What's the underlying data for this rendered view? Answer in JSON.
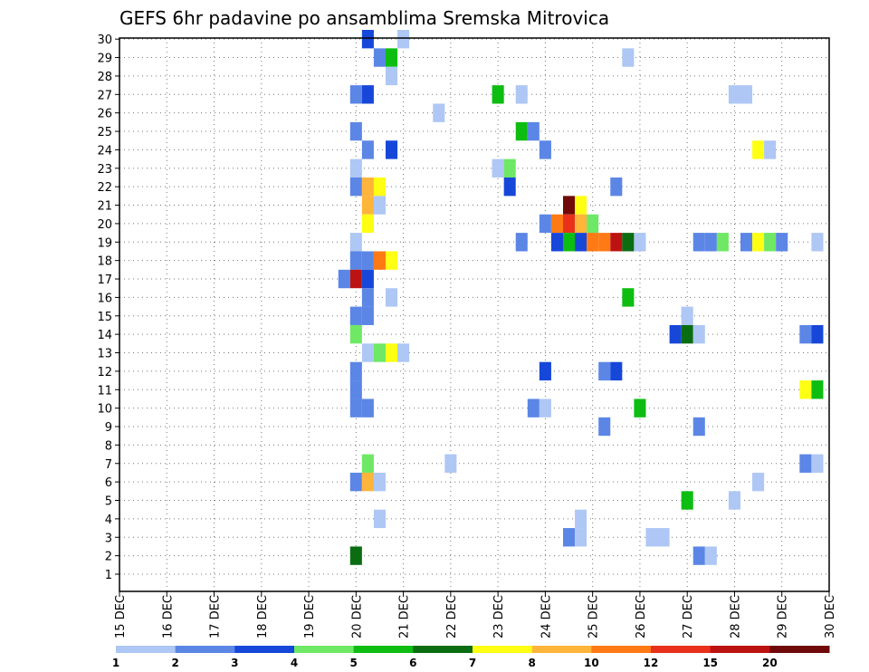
{
  "chart_data": {
    "type": "heatmap",
    "title": "GEFS 6hr padavine po ansamblima Sremska Mitrovica",
    "xlabel": "",
    "ylabel": "",
    "x_ticks": [
      "15 DEC",
      "16 DEC",
      "17 DEC",
      "18 DEC",
      "19 DEC",
      "20 DEC",
      "21 DEC",
      "22 DEC",
      "23 DEC",
      "24 DEC",
      "25 DEC",
      "26 DEC",
      "27 DEC",
      "28 DEC",
      "29 DEC",
      "30 DEC"
    ],
    "xlim_days": [
      15,
      30
    ],
    "y_members": [
      1,
      2,
      3,
      4,
      5,
      6,
      7,
      8,
      9,
      10,
      11,
      12,
      13,
      14,
      15,
      16,
      17,
      18,
      19,
      20,
      21,
      22,
      23,
      24,
      25,
      26,
      27,
      28,
      29,
      30
    ],
    "grid": true,
    "legend": {
      "placement": "bottom",
      "labels": [
        "1",
        "2",
        "3",
        "4",
        "5",
        "6",
        "7",
        "8",
        "10",
        "12",
        "15",
        "20"
      ],
      "colors": [
        "#aec7f4",
        "#5b86e6",
        "#1747d9",
        "#6ee865",
        "#0dbd11",
        "#0b6d12",
        "#ffff14",
        "#ffb43a",
        "#ff7a14",
        "#e8301a",
        "#bd1212",
        "#700a0a"
      ]
    },
    "cells": [
      {
        "m": 30,
        "d": 20.25,
        "c": 2
      },
      {
        "m": 30,
        "d": 21.0,
        "c": 0
      },
      {
        "m": 29,
        "d": 20.5,
        "c": 1
      },
      {
        "m": 29,
        "d": 20.75,
        "c": 4
      },
      {
        "m": 29,
        "d": 25.75,
        "c": 0
      },
      {
        "m": 28,
        "d": 20.75,
        "c": 0
      },
      {
        "m": 27,
        "d": 20.0,
        "c": 1
      },
      {
        "m": 27,
        "d": 20.25,
        "c": 2
      },
      {
        "m": 27,
        "d": 23.0,
        "c": 4
      },
      {
        "m": 27,
        "d": 23.5,
        "c": 0
      },
      {
        "m": 27,
        "d": 28.0,
        "c": 0
      },
      {
        "m": 27,
        "d": 28.25,
        "c": 0
      },
      {
        "m": 26,
        "d": 21.75,
        "c": 0
      },
      {
        "m": 25,
        "d": 20.0,
        "c": 1
      },
      {
        "m": 25,
        "d": 23.5,
        "c": 4
      },
      {
        "m": 25,
        "d": 23.75,
        "c": 1
      },
      {
        "m": 24,
        "d": 20.25,
        "c": 1
      },
      {
        "m": 24,
        "d": 20.75,
        "c": 2
      },
      {
        "m": 24,
        "d": 24.0,
        "c": 1
      },
      {
        "m": 24,
        "d": 28.5,
        "c": 6
      },
      {
        "m": 24,
        "d": 28.75,
        "c": 0
      },
      {
        "m": 23,
        "d": 20.0,
        "c": 0
      },
      {
        "m": 23,
        "d": 23.0,
        "c": 0
      },
      {
        "m": 23,
        "d": 23.25,
        "c": 3
      },
      {
        "m": 22,
        "d": 20.0,
        "c": 1
      },
      {
        "m": 22,
        "d": 20.25,
        "c": 7
      },
      {
        "m": 22,
        "d": 20.5,
        "c": 6
      },
      {
        "m": 22,
        "d": 23.25,
        "c": 2
      },
      {
        "m": 22,
        "d": 25.5,
        "c": 1
      },
      {
        "m": 21,
        "d": 20.25,
        "c": 7
      },
      {
        "m": 21,
        "d": 20.5,
        "c": 0
      },
      {
        "m": 21,
        "d": 24.5,
        "c": 11
      },
      {
        "m": 21,
        "d": 24.75,
        "c": 6
      },
      {
        "m": 20,
        "d": 20.25,
        "c": 6
      },
      {
        "m": 20,
        "d": 24.0,
        "c": 1
      },
      {
        "m": 20,
        "d": 24.25,
        "c": 8
      },
      {
        "m": 20,
        "d": 24.5,
        "c": 9
      },
      {
        "m": 20,
        "d": 24.75,
        "c": 7
      },
      {
        "m": 20,
        "d": 25.0,
        "c": 3
      },
      {
        "m": 19,
        "d": 20.0,
        "c": 0
      },
      {
        "m": 19,
        "d": 23.5,
        "c": 1
      },
      {
        "m": 19,
        "d": 24.25,
        "c": 2
      },
      {
        "m": 19,
        "d": 24.5,
        "c": 4
      },
      {
        "m": 19,
        "d": 24.75,
        "c": 2
      },
      {
        "m": 19,
        "d": 25.0,
        "c": 8
      },
      {
        "m": 19,
        "d": 25.25,
        "c": 8
      },
      {
        "m": 19,
        "d": 25.5,
        "c": 10
      },
      {
        "m": 19,
        "d": 25.75,
        "c": 5
      },
      {
        "m": 19,
        "d": 26.0,
        "c": 0
      },
      {
        "m": 19,
        "d": 27.25,
        "c": 1
      },
      {
        "m": 19,
        "d": 27.5,
        "c": 1
      },
      {
        "m": 19,
        "d": 27.75,
        "c": 3
      },
      {
        "m": 19,
        "d": 28.25,
        "c": 1
      },
      {
        "m": 19,
        "d": 28.5,
        "c": 6
      },
      {
        "m": 19,
        "d": 28.75,
        "c": 3
      },
      {
        "m": 19,
        "d": 29.0,
        "c": 1
      },
      {
        "m": 19,
        "d": 29.75,
        "c": 0
      },
      {
        "m": 18,
        "d": 20.0,
        "c": 1
      },
      {
        "m": 18,
        "d": 20.25,
        "c": 1
      },
      {
        "m": 18,
        "d": 20.5,
        "c": 8
      },
      {
        "m": 18,
        "d": 20.75,
        "c": 6
      },
      {
        "m": 17,
        "d": 19.75,
        "c": 1
      },
      {
        "m": 17,
        "d": 20.0,
        "c": 10
      },
      {
        "m": 17,
        "d": 20.25,
        "c": 2
      },
      {
        "m": 16,
        "d": 20.25,
        "c": 1
      },
      {
        "m": 16,
        "d": 20.75,
        "c": 0
      },
      {
        "m": 16,
        "d": 25.75,
        "c": 4
      },
      {
        "m": 15,
        "d": 20.0,
        "c": 1
      },
      {
        "m": 15,
        "d": 20.25,
        "c": 1
      },
      {
        "m": 15,
        "d": 27.0,
        "c": 0
      },
      {
        "m": 14,
        "d": 20.0,
        "c": 3
      },
      {
        "m": 14,
        "d": 26.75,
        "c": 2
      },
      {
        "m": 14,
        "d": 27.0,
        "c": 5
      },
      {
        "m": 14,
        "d": 27.25,
        "c": 0
      },
      {
        "m": 14,
        "d": 29.5,
        "c": 1
      },
      {
        "m": 14,
        "d": 29.75,
        "c": 2
      },
      {
        "m": 13,
        "d": 20.25,
        "c": 0
      },
      {
        "m": 13,
        "d": 20.5,
        "c": 3
      },
      {
        "m": 13,
        "d": 20.75,
        "c": 6
      },
      {
        "m": 13,
        "d": 21.0,
        "c": 0
      },
      {
        "m": 12,
        "d": 20.0,
        "c": 1
      },
      {
        "m": 12,
        "d": 24.0,
        "c": 2
      },
      {
        "m": 12,
        "d": 25.25,
        "c": 1
      },
      {
        "m": 12,
        "d": 25.5,
        "c": 2
      },
      {
        "m": 11,
        "d": 20.0,
        "c": 1
      },
      {
        "m": 11,
        "d": 29.5,
        "c": 6
      },
      {
        "m": 11,
        "d": 29.75,
        "c": 4
      },
      {
        "m": 10,
        "d": 20.0,
        "c": 1
      },
      {
        "m": 10,
        "d": 20.25,
        "c": 1
      },
      {
        "m": 10,
        "d": 23.75,
        "c": 1
      },
      {
        "m": 10,
        "d": 24.0,
        "c": 0
      },
      {
        "m": 10,
        "d": 26.0,
        "c": 4
      },
      {
        "m": 9,
        "d": 25.25,
        "c": 1
      },
      {
        "m": 9,
        "d": 27.25,
        "c": 1
      },
      {
        "m": 7,
        "d": 20.25,
        "c": 3
      },
      {
        "m": 7,
        "d": 22.0,
        "c": 0
      },
      {
        "m": 7,
        "d": 29.5,
        "c": 1
      },
      {
        "m": 7,
        "d": 29.75,
        "c": 0
      },
      {
        "m": 6,
        "d": 20.0,
        "c": 1
      },
      {
        "m": 6,
        "d": 20.25,
        "c": 7
      },
      {
        "m": 6,
        "d": 20.5,
        "c": 0
      },
      {
        "m": 6,
        "d": 28.5,
        "c": 0
      },
      {
        "m": 5,
        "d": 27.0,
        "c": 4
      },
      {
        "m": 5,
        "d": 28.0,
        "c": 0
      },
      {
        "m": 4,
        "d": 20.5,
        "c": 0
      },
      {
        "m": 4,
        "d": 24.75,
        "c": 0
      },
      {
        "m": 3,
        "d": 24.5,
        "c": 1
      },
      {
        "m": 3,
        "d": 24.75,
        "c": 0
      },
      {
        "m": 3,
        "d": 26.25,
        "c": 0
      },
      {
        "m": 3,
        "d": 26.5,
        "c": 0
      },
      {
        "m": 2,
        "d": 20.0,
        "c": 5
      },
      {
        "m": 2,
        "d": 27.25,
        "c": 1
      },
      {
        "m": 2,
        "d": 27.5,
        "c": 0
      }
    ]
  }
}
